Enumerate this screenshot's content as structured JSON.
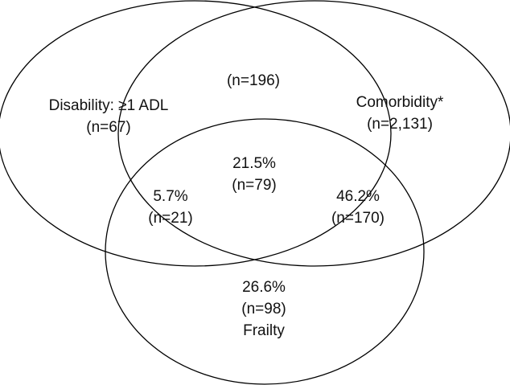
{
  "colors": {
    "background": "#ffffff",
    "stroke": "#000000",
    "text": "#111111"
  },
  "sets": {
    "disability": {
      "name": "Disability: ≥1 ADL",
      "count": "(n=67)"
    },
    "comorbidity": {
      "name": "Comorbidity*",
      "count": "(n=2,131)"
    },
    "frailty": {
      "percent": "26.6%",
      "count": "(n=98)",
      "name": "Frailty"
    }
  },
  "overlaps": {
    "disability_comorbidity": {
      "count": "(n=196)"
    },
    "disability_frailty": {
      "percent": "5.7%",
      "count": "(n=21)"
    },
    "comorbidity_frailty": {
      "percent": "46.2%",
      "count": "(n=170)"
    },
    "all_three": {
      "percent": "21.5%",
      "count": "(n=79)"
    }
  }
}
